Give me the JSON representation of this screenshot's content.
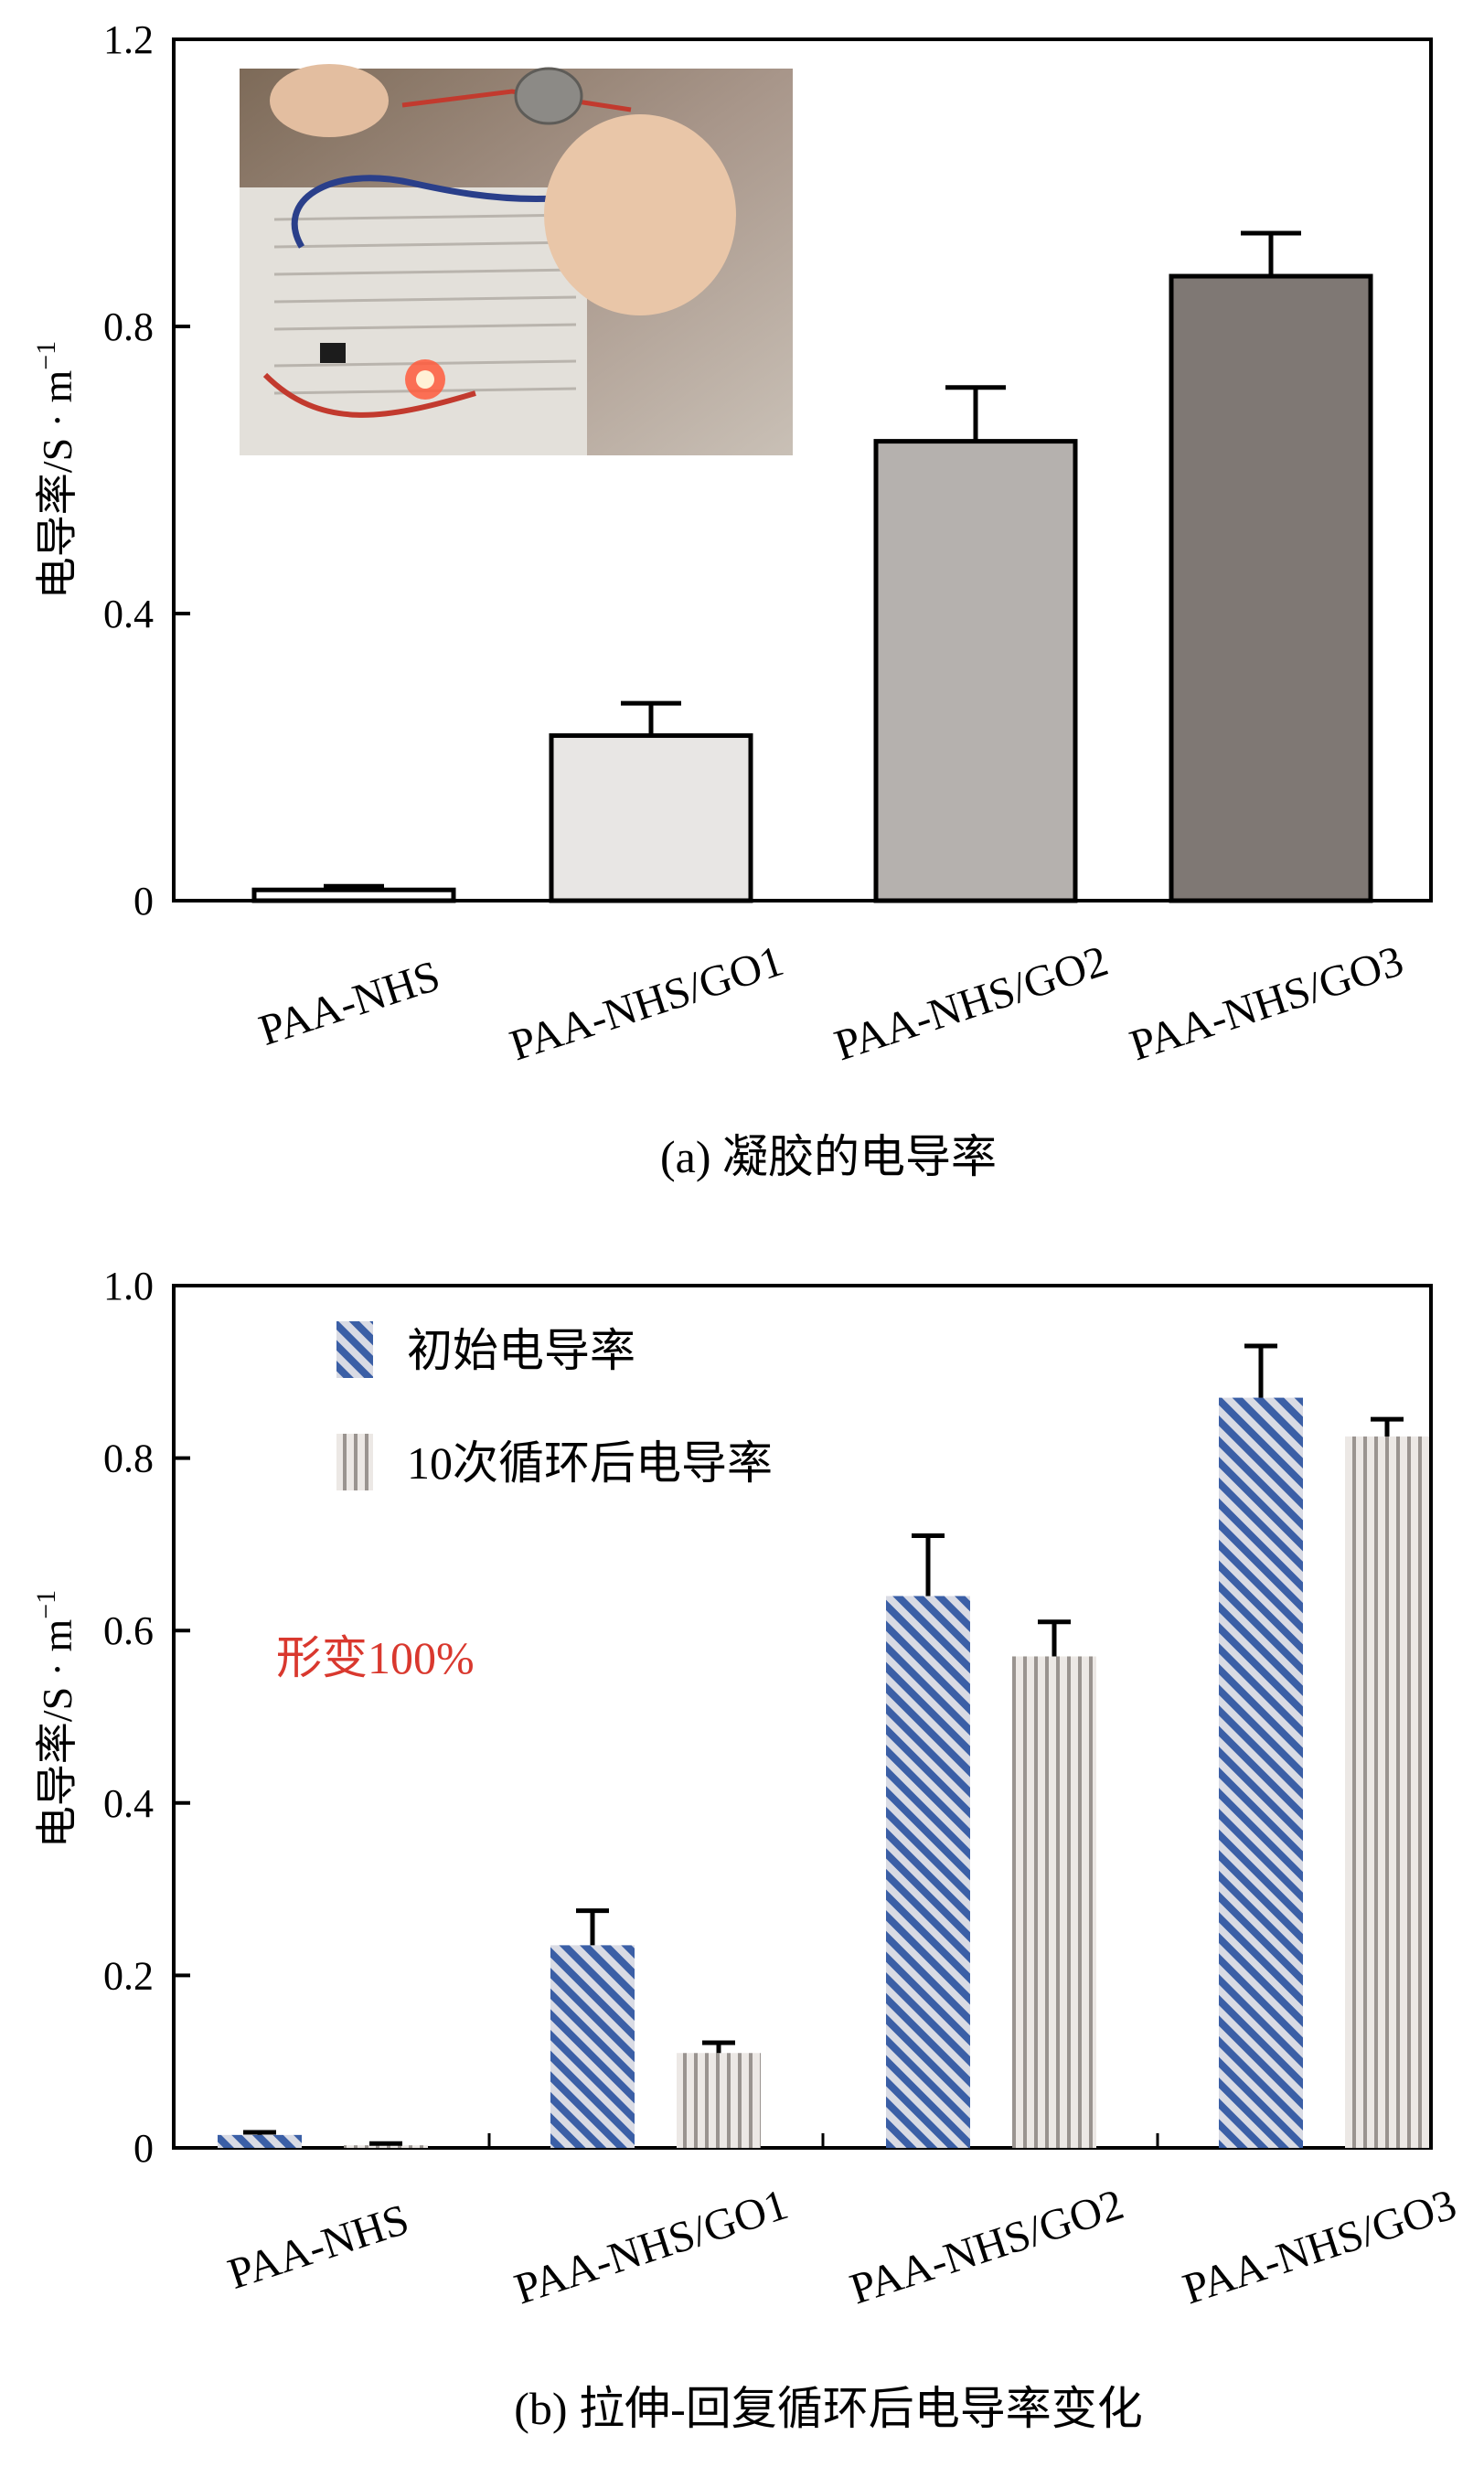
{
  "chart_data": [
    {
      "type": "bar",
      "panel": "a",
      "caption": "(a) 凝胶的电导率",
      "ylabel": "电导率/S · m",
      "ylabel_exp": "−1",
      "ylim": [
        0,
        1.2
      ],
      "yticks": [
        0,
        0.4,
        0.8,
        1.2
      ],
      "ytick_labels": [
        "0",
        "0.4",
        "0.8",
        "1.2"
      ],
      "categories": [
        "PAA-NHS",
        "PAA-NHS/GO1",
        "PAA-NHS/GO2",
        "PAA-NHS/GO3"
      ],
      "values": [
        0.015,
        0.23,
        0.64,
        0.87
      ],
      "errors": [
        0.005,
        0.045,
        0.075,
        0.06
      ],
      "colors": [
        "#ffffff",
        "#e8e6e4",
        "#b5b1ae",
        "#7f7874"
      ],
      "inset_photo": "LED-circuit-photo"
    },
    {
      "type": "bar",
      "panel": "b",
      "caption": "(b) 拉伸-回复循环后电导率变化",
      "ylabel": "电导率/S · m",
      "ylabel_exp": "−1",
      "ylim": [
        0,
        1.0
      ],
      "yticks": [
        0,
        0.2,
        0.4,
        0.6,
        0.8,
        1.0
      ],
      "ytick_labels": [
        "0",
        "0.2",
        "0.4",
        "0.6",
        "0.8",
        "1.0"
      ],
      "categories": [
        "PAA-NHS",
        "PAA-NHS/GO1",
        "PAA-NHS/GO2",
        "PAA-NHS/GO3"
      ],
      "annotation": "形变100%",
      "annotation_color": "#d9382e",
      "series": [
        {
          "name": "初始电导率",
          "values": [
            0.015,
            0.235,
            0.64,
            0.87
          ],
          "errors": [
            0.003,
            0.04,
            0.07,
            0.06
          ],
          "pattern": "diagonal",
          "color": "#3b5fa6"
        },
        {
          "name": "10次循环后电导率",
          "values": [
            0.003,
            0.11,
            0.57,
            0.825
          ],
          "errors": [
            0.002,
            0.012,
            0.04,
            0.02
          ],
          "pattern": "vertical",
          "color": "#9a9490"
        }
      ]
    }
  ]
}
